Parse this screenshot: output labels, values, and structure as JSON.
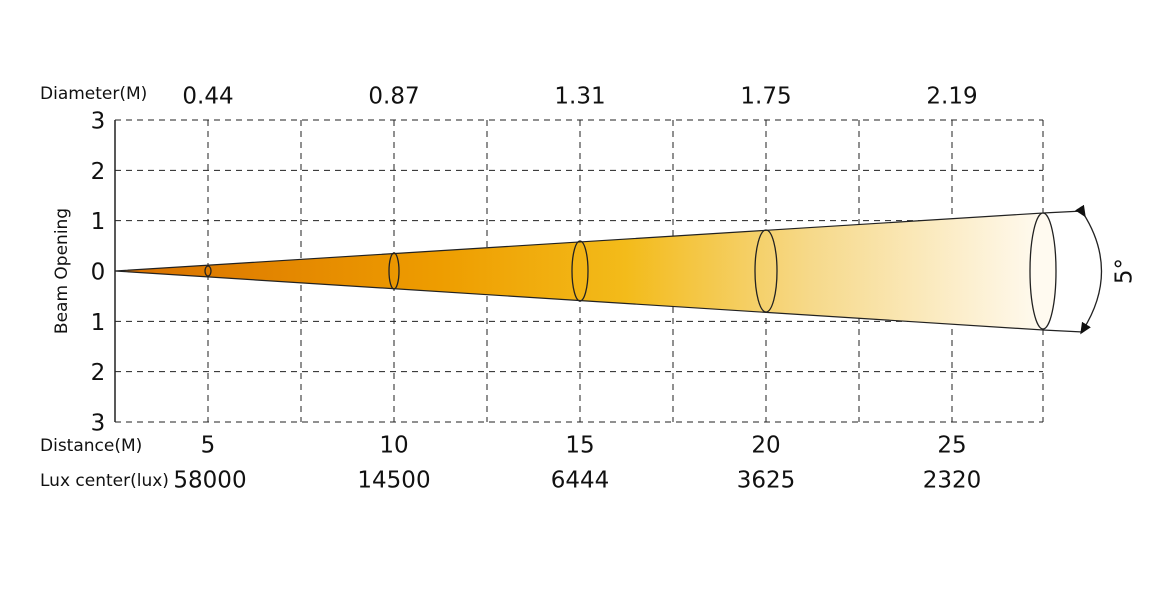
{
  "diameter": {
    "label": "Diameter(M)",
    "values": [
      "0.44",
      "0.87",
      "1.31",
      "1.75",
      "2.19"
    ]
  },
  "beam_opening": {
    "label": "Beam Opening",
    "ticks": [
      "3",
      "2",
      "1",
      "0",
      "1",
      "2",
      "3"
    ]
  },
  "distance": {
    "label": "Distance(M)",
    "values": [
      "5",
      "10",
      "15",
      "20",
      "25"
    ]
  },
  "lux": {
    "label": "Lux center(lux)",
    "values": [
      "58000",
      "14500",
      "6444",
      "3625",
      "2320"
    ]
  },
  "angle": "5°"
}
